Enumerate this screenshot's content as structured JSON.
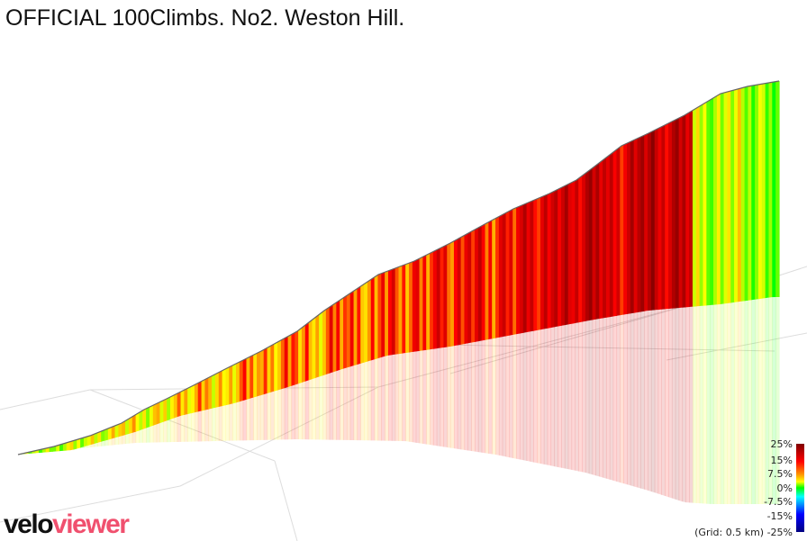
{
  "title": "OFFICIAL 100Climbs. No2. Weston Hill.",
  "logo": {
    "part1": "velo",
    "part2": "viewer"
  },
  "legend": {
    "labels": [
      "25%",
      "15%",
      "7.5%",
      "0%",
      "-7.5%",
      "-15%",
      "-25%"
    ],
    "grid_note": "(Grid: 0.5 km)"
  },
  "chart_data": {
    "type": "area",
    "title": "OFFICIAL 100Climbs. No2. Weston Hill.",
    "description_axis": "distance (start to finish), gradient-coloured 3D elevation profile",
    "grid_spacing_km": 0.5,
    "color_scale_percent": [
      -25,
      -15,
      -7.5,
      0,
      7.5,
      15,
      25
    ],
    "gradient_segments_percent": [
      4,
      5,
      5,
      6,
      7,
      8,
      9,
      7,
      8,
      10,
      11,
      9,
      10,
      12,
      11,
      13,
      12,
      10,
      14,
      13,
      12,
      15,
      13,
      14,
      16,
      15,
      17,
      14,
      16,
      18,
      17,
      19,
      18,
      20,
      17,
      19,
      21,
      18,
      20,
      6,
      5,
      7,
      4,
      3
    ]
  }
}
